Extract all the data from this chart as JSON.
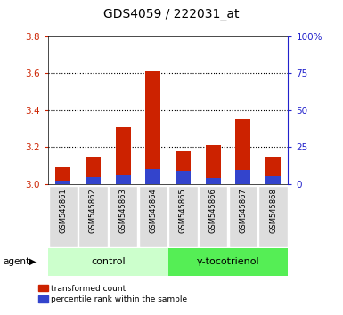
{
  "title": "GDS4059 / 222031_at",
  "samples": [
    "GSM545861",
    "GSM545862",
    "GSM545863",
    "GSM545864",
    "GSM545865",
    "GSM545866",
    "GSM545867",
    "GSM545868"
  ],
  "red_values": [
    3.09,
    3.15,
    3.31,
    3.61,
    3.18,
    3.21,
    3.35,
    3.15
  ],
  "blue_values": [
    2.5,
    5.0,
    6.0,
    10.0,
    9.0,
    4.0,
    9.5,
    5.5
  ],
  "bar_bottom": 3.0,
  "ylim_left": [
    3.0,
    3.8
  ],
  "ylim_right": [
    0,
    100
  ],
  "yticks_left": [
    3.0,
    3.2,
    3.4,
    3.6,
    3.8
  ],
  "yticks_right": [
    0,
    25,
    50,
    75,
    100
  ],
  "ytick_labels_right": [
    "0",
    "25",
    "50",
    "75",
    "100%"
  ],
  "red_color": "#CC2200",
  "blue_color": "#3344CC",
  "group1_label": "control",
  "group2_label": "γ-tocotrienol",
  "group1_color": "#CCFFCC",
  "group2_color": "#55EE55",
  "agent_label": "agent",
  "legend_red": "transformed count",
  "legend_blue": "percentile rank within the sample",
  "bar_width": 0.5,
  "sample_bg_color": "#DDDDDD",
  "plot_bg": "#FFFFFF",
  "left_tick_color": "#CC2200",
  "right_tick_color": "#2222CC",
  "grid_color": "#000000",
  "title_fontsize": 10,
  "grid_lines": [
    3.2,
    3.4,
    3.6
  ]
}
